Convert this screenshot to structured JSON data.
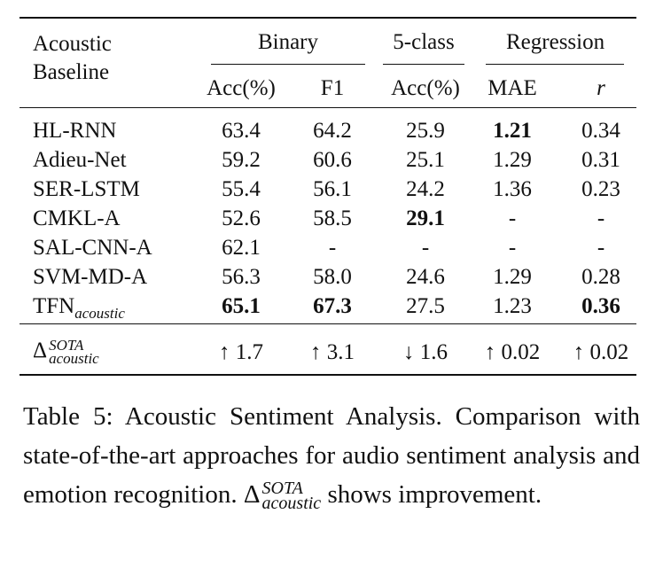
{
  "table": {
    "header": {
      "row_label": [
        "Acoustic",
        "Baseline"
      ],
      "groups": [
        "Binary",
        "5-class",
        "Regression"
      ],
      "columns": [
        "Acc(%)",
        "F1",
        "Acc(%)",
        "MAE",
        "r"
      ]
    },
    "rows": [
      {
        "name": "HL-RNN",
        "cells": [
          "63.4",
          "64.2",
          "25.9",
          "1.21",
          "0.34"
        ]
      },
      {
        "name": "Adieu-Net",
        "cells": [
          "59.2",
          "60.6",
          "25.1",
          "1.29",
          "0.31"
        ]
      },
      {
        "name": "SER-LSTM",
        "cells": [
          "55.4",
          "56.1",
          "24.2",
          "1.36",
          "0.23"
        ]
      },
      {
        "name": "CMKL-A",
        "cells": [
          "52.6",
          "58.5",
          "29.1",
          "-",
          "-"
        ]
      },
      {
        "name": "SAL-CNN-A",
        "cells": [
          "62.1",
          "-",
          "-",
          "-",
          "-"
        ]
      },
      {
        "name": "SVM-MD-A",
        "cells": [
          "56.3",
          "58.0",
          "24.6",
          "1.29",
          "0.28"
        ]
      },
      {
        "name": {
          "text": "TFN",
          "sub": "acoustic"
        },
        "cells": [
          "65.1",
          "67.3",
          "27.5",
          "1.23",
          "0.36"
        ]
      }
    ],
    "delta": {
      "name": {
        "text": "Δ",
        "sup": "SOTA",
        "sub": "acoustic"
      },
      "cells": [
        "↑ 1.7",
        "↑ 3.1",
        "↓ 1.6",
        "↑ 0.02",
        "↑ 0.02"
      ]
    }
  },
  "caption": {
    "before": "Table 5: Acoustic Sentiment Analysis. Comparison with state-of-the-art approaches for audio sentiment analysis and emotion recognition.",
    "symbol": {
      "text": "Δ",
      "sup": "SOTA",
      "sub": "acoustic"
    },
    "after": "shows improvement."
  }
}
